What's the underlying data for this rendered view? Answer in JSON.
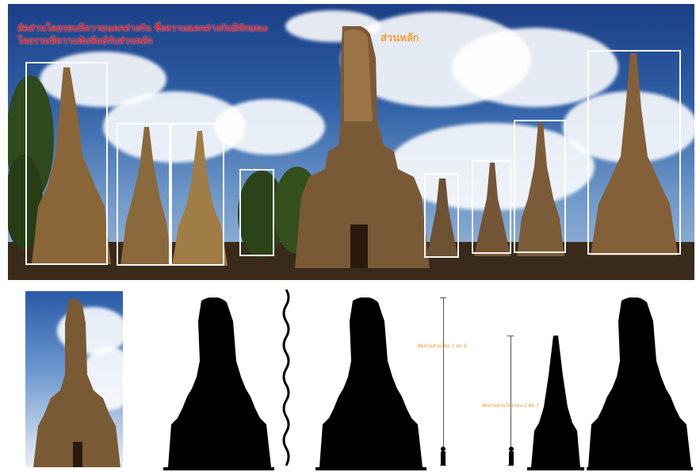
{
  "photo": {
    "caption_red": "สัดส่วนโดยรอบมีความแตกต่างกัน ซึ่งความแตกต่างกันมีลักษณะโดยรวมมีความสัมพันธ์กับส่วนหลัก",
    "caption_main": "ส่วนหลัก"
  },
  "annotations": {
    "ratio_1_9": "สัดส่วนส่วนโดย 1 ต่อ 9",
    "ratio_1_7": "สัดส่วนส่วนโดยรอบ 1 ต่อ 7"
  },
  "colors": {
    "bbox": "#ffffff",
    "caption_red": "#e0202a",
    "caption_orange": "#f0a03a",
    "silhouette": "#000000"
  }
}
